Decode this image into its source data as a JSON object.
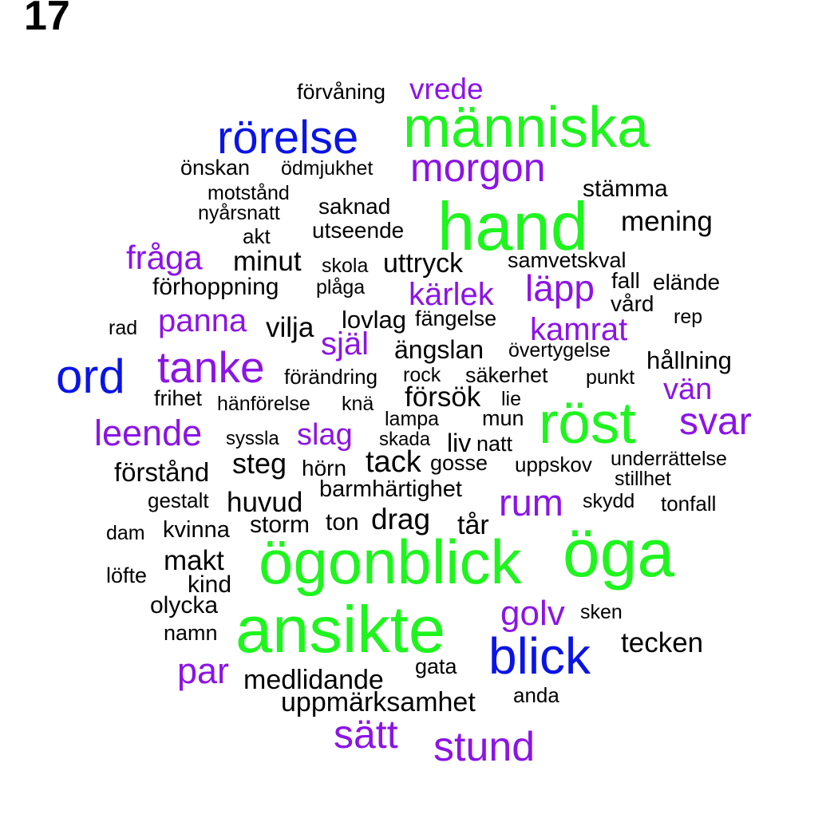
{
  "page_number": "17",
  "words": [
    {
      "t": "förvåning",
      "c": "black"
    },
    {
      "t": "vrede",
      "c": "purple"
    },
    {
      "t": "människa",
      "c": "green"
    },
    {
      "t": "rörelse",
      "c": "blue"
    },
    {
      "t": "morgon",
      "c": "purple"
    },
    {
      "t": "önskan",
      "c": "black"
    },
    {
      "t": "ödmjukhet",
      "c": "black"
    },
    {
      "t": "stämma",
      "c": "black"
    },
    {
      "t": "motstånd",
      "c": "black"
    },
    {
      "t": "hand",
      "c": "green"
    },
    {
      "t": "saknad",
      "c": "black"
    },
    {
      "t": "nyårsnatt",
      "c": "black"
    },
    {
      "t": "mening",
      "c": "black"
    },
    {
      "t": "akt",
      "c": "black"
    },
    {
      "t": "utseende",
      "c": "black"
    },
    {
      "t": "fråga",
      "c": "purple"
    },
    {
      "t": "minut",
      "c": "black"
    },
    {
      "t": "skola",
      "c": "black"
    },
    {
      "t": "uttryck",
      "c": "black"
    },
    {
      "t": "samvetskval",
      "c": "black"
    },
    {
      "t": "fall",
      "c": "black"
    },
    {
      "t": "elände",
      "c": "black"
    },
    {
      "t": "förhoppning",
      "c": "black"
    },
    {
      "t": "plåga",
      "c": "black"
    },
    {
      "t": "kärlek",
      "c": "purple"
    },
    {
      "t": "läpp",
      "c": "purple"
    },
    {
      "t": "vård",
      "c": "black"
    },
    {
      "t": "rad",
      "c": "black"
    },
    {
      "t": "panna",
      "c": "purple"
    },
    {
      "t": "vilja",
      "c": "black"
    },
    {
      "t": "lovlag",
      "c": "black"
    },
    {
      "t": "fängelse",
      "c": "black"
    },
    {
      "t": "kamrat",
      "c": "purple"
    },
    {
      "t": "rep",
      "c": "black"
    },
    {
      "t": "själ",
      "c": "purple"
    },
    {
      "t": "ängslan",
      "c": "black"
    },
    {
      "t": "övertygelse",
      "c": "black"
    },
    {
      "t": "hållning",
      "c": "black"
    },
    {
      "t": "ord",
      "c": "blue"
    },
    {
      "t": "tanke",
      "c": "purple"
    },
    {
      "t": "förändring",
      "c": "black"
    },
    {
      "t": "rock",
      "c": "black"
    },
    {
      "t": "säkerhet",
      "c": "black"
    },
    {
      "t": "punkt",
      "c": "black"
    },
    {
      "t": "vän",
      "c": "purple"
    },
    {
      "t": "frihet",
      "c": "black"
    },
    {
      "t": "hänförelse",
      "c": "black"
    },
    {
      "t": "knä",
      "c": "black"
    },
    {
      "t": "försök",
      "c": "black"
    },
    {
      "t": "lie",
      "c": "black"
    },
    {
      "t": "röst",
      "c": "green"
    },
    {
      "t": "lampa",
      "c": "black"
    },
    {
      "t": "mun",
      "c": "black"
    },
    {
      "t": "svar",
      "c": "purple"
    },
    {
      "t": "leende",
      "c": "purple"
    },
    {
      "t": "syssla",
      "c": "black"
    },
    {
      "t": "slag",
      "c": "purple"
    },
    {
      "t": "skada",
      "c": "black"
    },
    {
      "t": "liv",
      "c": "black"
    },
    {
      "t": "natt",
      "c": "black"
    },
    {
      "t": "förstånd",
      "c": "black"
    },
    {
      "t": "steg",
      "c": "black"
    },
    {
      "t": "hörn",
      "c": "black"
    },
    {
      "t": "tack",
      "c": "black"
    },
    {
      "t": "gosse",
      "c": "black"
    },
    {
      "t": "uppskov",
      "c": "black"
    },
    {
      "t": "underrättelse",
      "c": "black"
    },
    {
      "t": "stillhet",
      "c": "black"
    },
    {
      "t": "barmhärtighet",
      "c": "black"
    },
    {
      "t": "gestalt",
      "c": "black"
    },
    {
      "t": "huvud",
      "c": "black"
    },
    {
      "t": "rum",
      "c": "purple"
    },
    {
      "t": "skydd",
      "c": "black"
    },
    {
      "t": "tonfall",
      "c": "black"
    },
    {
      "t": "drag",
      "c": "black"
    },
    {
      "t": "dam",
      "c": "black"
    },
    {
      "t": "kvinna",
      "c": "black"
    },
    {
      "t": "storm",
      "c": "black"
    },
    {
      "t": "ton",
      "c": "black"
    },
    {
      "t": "tår",
      "c": "black"
    },
    {
      "t": "öga",
      "c": "green"
    },
    {
      "t": "makt",
      "c": "black"
    },
    {
      "t": "ögonblick",
      "c": "green"
    },
    {
      "t": "löfte",
      "c": "black"
    },
    {
      "t": "kind",
      "c": "black"
    },
    {
      "t": "olycka",
      "c": "black"
    },
    {
      "t": "golv",
      "c": "purple"
    },
    {
      "t": "sken",
      "c": "black"
    },
    {
      "t": "namn",
      "c": "black"
    },
    {
      "t": "ansikte",
      "c": "green"
    },
    {
      "t": "tecken",
      "c": "black"
    },
    {
      "t": "blick",
      "c": "blue"
    },
    {
      "t": "par",
      "c": "purple"
    },
    {
      "t": "gata",
      "c": "black"
    },
    {
      "t": "medlidande",
      "c": "black"
    },
    {
      "t": "anda",
      "c": "black"
    },
    {
      "t": "uppmärksamhet",
      "c": "black"
    },
    {
      "t": "sätt",
      "c": "purple"
    },
    {
      "t": "stund",
      "c": "purple"
    }
  ]
}
